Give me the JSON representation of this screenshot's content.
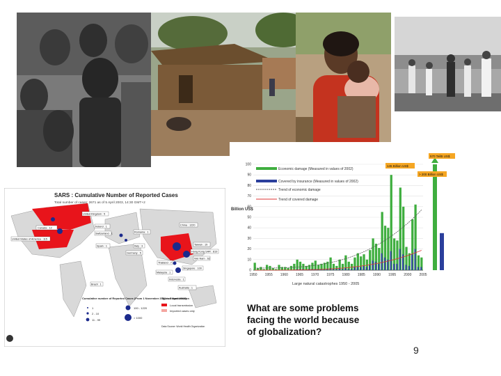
{
  "slide": {
    "caption": "What are some problems facing the world because of globalization?",
    "page_number": "9"
  },
  "photos": {
    "children": "children-photo",
    "hut": "hut-village-photo",
    "mother": "mother-child-photo",
    "crowd": "refugee-crowd-photo"
  },
  "map": {
    "title": "SARS : Cumulative Number of Reported Cases",
    "subtitle": "Total number of cases: 2671 as of 5 April 2003, 14:30 GMT+2",
    "labels": [
      "Canada : 12",
      "United Kingdom : 5",
      "United States of America : 115",
      "Ireland : 1",
      "Spain : 1",
      "Switzerland : 1",
      "Italy : 3",
      "Romania : 1",
      "Germany : 5",
      "China : 1220",
      "Taiwan : 19",
      "Hong Kong SAR : 819",
      "Viet Nam : 62",
      "Thailand : 7",
      "Singapore : 100",
      "Malaysia : 1",
      "Indonesia : 1",
      "Brazil : 1",
      "Australia : 1"
    ],
    "legend_title": "Cumulative number of Reported Cases (From 1 November 2002 to 5 April 2003)",
    "legend_items": [
      "1",
      "2 - 10",
      "11 - 99",
      "100 - 1220",
      "> 1000"
    ],
    "transmission_title": "Type of transmission",
    "transmission_items": [
      "Local transmission",
      "Imported cases only"
    ],
    "footnote": "Data Source: World Health Organization",
    "accent": "#e8141b"
  },
  "chart_data": {
    "type": "bar",
    "title": "Large natural catastrophes 1950 - 2005",
    "ylabel": "Billion US$",
    "ylim": [
      0,
      100
    ],
    "yticks": [
      0,
      10,
      20,
      30,
      40,
      50,
      60,
      70,
      80,
      90,
      100
    ],
    "xticks": [
      "1950",
      "1955",
      "1960",
      "1965",
      "1970",
      "1975",
      "1980",
      "1985",
      "1990",
      "1995",
      "2000",
      "2005"
    ],
    "legend": [
      "Economic damage (Measured in values of 2002)",
      "Covered by insurance (Measured in values of 2002)",
      "Trend of economic damage",
      "Trend of covered damage"
    ],
    "annotations": [
      "145 Billion US$",
      "> 200 Billion US$",
      "570 TeilB US$"
    ],
    "series": [
      {
        "name": "Economic damage",
        "color": "#3fae3f",
        "values": [
          7,
          2,
          3,
          1,
          5,
          4,
          2,
          1,
          5,
          3,
          3,
          2,
          4,
          6,
          10,
          8,
          6,
          4,
          5,
          7,
          9,
          5,
          6,
          7,
          8,
          12,
          6,
          4,
          10,
          6,
          14,
          8,
          6,
          12,
          16,
          13,
          15,
          10,
          19,
          30,
          25,
          21,
          55,
          42,
          40,
          90,
          30,
          28,
          78,
          60,
          22,
          16,
          48,
          62,
          14,
          12
        ]
      },
      {
        "name": "Covered by insurance",
        "color": "#2b3f9c",
        "values": [
          0,
          0,
          0,
          0,
          0,
          0,
          0,
          0,
          0,
          0,
          0,
          0,
          0,
          0,
          1,
          1,
          1,
          0,
          1,
          1,
          1,
          1,
          1,
          1,
          1,
          2,
          1,
          1,
          2,
          1,
          2,
          1,
          1,
          3,
          3,
          3,
          4,
          3,
          5,
          9,
          8,
          6,
          16,
          12,
          10,
          18,
          6,
          6,
          20,
          15,
          5,
          4,
          15,
          20,
          3,
          3
        ]
      }
    ],
    "right_bars": [
      {
        "name": "green",
        "value": 100,
        "color": "#3fae3f"
      },
      {
        "name": "blue",
        "value": 35,
        "color": "#2b3f9c"
      }
    ]
  }
}
